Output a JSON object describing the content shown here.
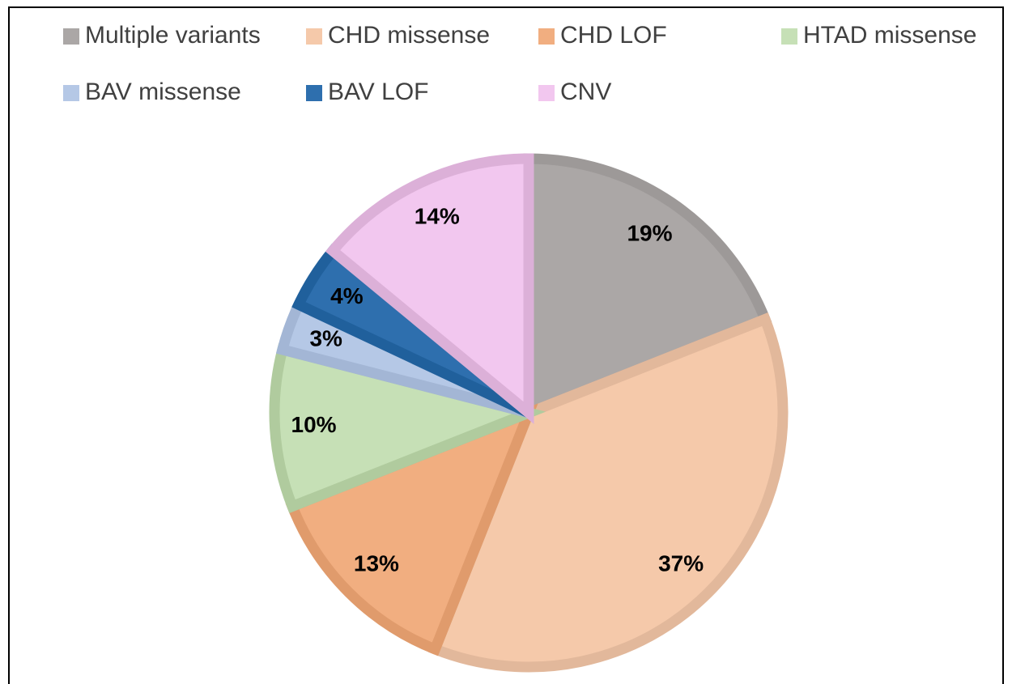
{
  "chart_data": {
    "type": "pie",
    "categories": [
      "Multiple variants",
      "CHD missense",
      "CHD LOF",
      "HTAD missense",
      "BAV missense",
      "BAV LOF",
      "CNV"
    ],
    "values": [
      19,
      37,
      13,
      10,
      3,
      4,
      14
    ],
    "value_labels": [
      "19%",
      "37%",
      "13%",
      "10%",
      "3%",
      "4%",
      "14%"
    ],
    "colors": [
      "#aba7a6",
      "#f5c9aa",
      "#f1ae80",
      "#c6e0b6",
      "#b5c8e6",
      "#2e6fae",
      "#f2c7ef"
    ],
    "edge_colors": [
      "#9d9998",
      "#e2b89b",
      "#e09b6c",
      "#b0cb9e",
      "#a3b6d5",
      "#20609c",
      "#dcb0d8"
    ],
    "legend": "top"
  }
}
